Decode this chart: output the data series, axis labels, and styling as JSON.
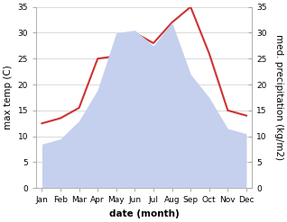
{
  "months": [
    "Jan",
    "Feb",
    "Mar",
    "Apr",
    "May",
    "Jun",
    "Jul",
    "Aug",
    "Sep",
    "Oct",
    "Nov",
    "Dec"
  ],
  "temp": [
    12.5,
    13.5,
    15.5,
    25.0,
    25.5,
    30.0,
    28.0,
    32.0,
    35.0,
    26.0,
    15.0,
    14.0
  ],
  "precip": [
    8.5,
    9.5,
    13.0,
    19.0,
    30.0,
    30.5,
    27.5,
    32.0,
    22.0,
    17.5,
    11.5,
    10.5
  ],
  "temp_color": "#cc3333",
  "precip_color": "#c5d0ee",
  "ylabel_left": "max temp (C)",
  "ylabel_right": "med. precipitation (kg/m2)",
  "xlabel": "date (month)",
  "ylim_left": [
    0,
    35
  ],
  "ylim_right": [
    0,
    35
  ],
  "yticks": [
    0,
    5,
    10,
    15,
    20,
    25,
    30,
    35
  ],
  "axis_fontsize": 6.5,
  "label_fontsize": 7.5
}
